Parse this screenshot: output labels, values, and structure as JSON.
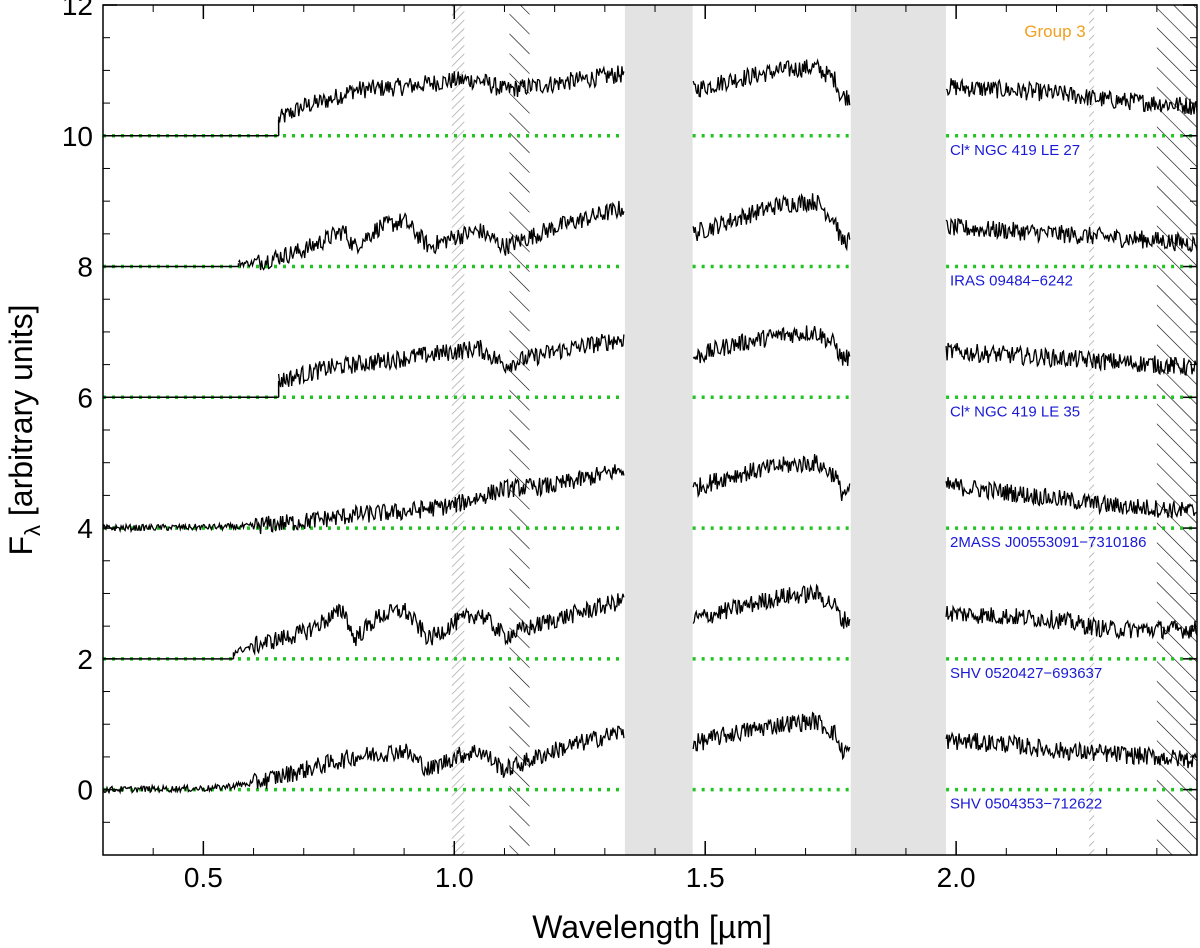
{
  "chart_data": {
    "type": "line",
    "title": "",
    "annotation": "Group 3",
    "xlabel": "Wavelength [µm]",
    "ylabel_main": "F",
    "ylabel_sub": "λ",
    "ylabel_rest": " [arbitrary units]",
    "xlim": [
      0.3,
      2.48
    ],
    "ylim": [
      -1,
      12
    ],
    "xticks": [
      {
        "v": 0.5,
        "label": "0.5"
      },
      {
        "v": 1.0,
        "label": "1.0"
      },
      {
        "v": 1.5,
        "label": "1.5"
      },
      {
        "v": 2.0,
        "label": "2.0"
      }
    ],
    "yticks": [
      {
        "v": 0,
        "label": "0"
      },
      {
        "v": 2,
        "label": "2"
      },
      {
        "v": 4,
        "label": "4"
      },
      {
        "v": 6,
        "label": "6"
      },
      {
        "v": 8,
        "label": "8"
      },
      {
        "v": 10,
        "label": "10"
      },
      {
        "v": 12,
        "label": "12"
      }
    ],
    "grid": false,
    "gaps_shaded": [
      [
        1.34,
        1.475
      ],
      [
        1.79,
        1.98
      ]
    ],
    "bands_hatched_gray": [
      [
        0.995,
        1.02
      ],
      [
        2.265,
        2.275
      ]
    ],
    "bands_hatched_black": [
      [
        1.11,
        1.15
      ],
      [
        2.4,
        2.48
      ]
    ],
    "colors": {
      "spectrum": "#000000",
      "baseline": "#22c422",
      "label": "#1a1ad6",
      "group": "#f0a020",
      "gap": "#e3e3e3",
      "hatch_gray": "#aaaaaa"
    },
    "series": [
      {
        "name": "Cl* NGC 419 LE 27",
        "offset": 10,
        "cutoff": 0.65,
        "points": [
          [
            0.65,
            0.25
          ],
          [
            0.7,
            0.45
          ],
          [
            0.75,
            0.55
          ],
          [
            0.8,
            0.7
          ],
          [
            0.9,
            0.75
          ],
          [
            1.0,
            0.85
          ],
          [
            1.05,
            0.85
          ],
          [
            1.1,
            0.7
          ],
          [
            1.2,
            0.8
          ],
          [
            1.34,
            0.95
          ],
          [
            1.475,
            0.7
          ],
          [
            1.55,
            0.85
          ],
          [
            1.65,
            1.0
          ],
          [
            1.72,
            1.05
          ],
          [
            1.76,
            0.85
          ],
          [
            1.77,
            0.6
          ],
          [
            1.79,
            0.6
          ],
          [
            1.98,
            0.75
          ],
          [
            2.1,
            0.7
          ],
          [
            2.2,
            0.65
          ],
          [
            2.3,
            0.55
          ],
          [
            2.4,
            0.5
          ],
          [
            2.48,
            0.45
          ]
        ]
      },
      {
        "name": "IRAS 09484−6242",
        "offset": 8,
        "cutoff": 0.57,
        "points": [
          [
            0.57,
            0.05
          ],
          [
            0.6,
            0.05
          ],
          [
            0.7,
            0.25
          ],
          [
            0.78,
            0.55
          ],
          [
            0.8,
            0.3
          ],
          [
            0.85,
            0.6
          ],
          [
            0.9,
            0.7
          ],
          [
            0.95,
            0.3
          ],
          [
            1.0,
            0.45
          ],
          [
            1.05,
            0.55
          ],
          [
            1.1,
            0.3
          ],
          [
            1.2,
            0.6
          ],
          [
            1.34,
            0.9
          ],
          [
            1.475,
            0.5
          ],
          [
            1.55,
            0.7
          ],
          [
            1.65,
            0.95
          ],
          [
            1.72,
            1.0
          ],
          [
            1.76,
            0.7
          ],
          [
            1.77,
            0.4
          ],
          [
            1.79,
            0.4
          ],
          [
            1.98,
            0.6
          ],
          [
            2.1,
            0.55
          ],
          [
            2.2,
            0.5
          ],
          [
            2.3,
            0.45
          ],
          [
            2.4,
            0.4
          ],
          [
            2.48,
            0.35
          ]
        ]
      },
      {
        "name": "Cl* NGC 419 LE 35",
        "offset": 6,
        "cutoff": 0.65,
        "points": [
          [
            0.65,
            0.25
          ],
          [
            0.7,
            0.35
          ],
          [
            0.75,
            0.45
          ],
          [
            0.8,
            0.5
          ],
          [
            0.9,
            0.6
          ],
          [
            1.0,
            0.7
          ],
          [
            1.05,
            0.75
          ],
          [
            1.1,
            0.5
          ],
          [
            1.2,
            0.7
          ],
          [
            1.34,
            0.9
          ],
          [
            1.475,
            0.6
          ],
          [
            1.55,
            0.8
          ],
          [
            1.65,
            0.95
          ],
          [
            1.72,
            1.0
          ],
          [
            1.76,
            0.8
          ],
          [
            1.77,
            0.6
          ],
          [
            1.79,
            0.6
          ],
          [
            1.98,
            0.7
          ],
          [
            2.1,
            0.65
          ],
          [
            2.2,
            0.6
          ],
          [
            2.3,
            0.55
          ],
          [
            2.4,
            0.5
          ],
          [
            2.48,
            0.45
          ]
        ]
      },
      {
        "name": "2MASS J00553091−7310186",
        "offset": 4,
        "cutoff": 0.3,
        "points": [
          [
            0.3,
            0.0
          ],
          [
            0.58,
            0.02
          ],
          [
            0.7,
            0.1
          ],
          [
            0.8,
            0.2
          ],
          [
            0.9,
            0.25
          ],
          [
            1.0,
            0.35
          ],
          [
            1.1,
            0.6
          ],
          [
            1.2,
            0.65
          ],
          [
            1.34,
            0.9
          ],
          [
            1.475,
            0.6
          ],
          [
            1.55,
            0.8
          ],
          [
            1.65,
            0.95
          ],
          [
            1.72,
            1.0
          ],
          [
            1.76,
            0.8
          ],
          [
            1.77,
            0.55
          ],
          [
            1.79,
            0.55
          ],
          [
            1.98,
            0.65
          ],
          [
            2.1,
            0.55
          ],
          [
            2.2,
            0.45
          ],
          [
            2.3,
            0.35
          ],
          [
            2.4,
            0.3
          ],
          [
            2.48,
            0.25
          ]
        ]
      },
      {
        "name": "SHV 0520427−693637",
        "offset": 2,
        "cutoff": 0.56,
        "points": [
          [
            0.56,
            0.1
          ],
          [
            0.6,
            0.2
          ],
          [
            0.7,
            0.4
          ],
          [
            0.78,
            0.75
          ],
          [
            0.8,
            0.3
          ],
          [
            0.85,
            0.65
          ],
          [
            0.9,
            0.75
          ],
          [
            0.95,
            0.3
          ],
          [
            1.0,
            0.55
          ],
          [
            1.05,
            0.7
          ],
          [
            1.1,
            0.35
          ],
          [
            1.2,
            0.6
          ],
          [
            1.34,
            0.9
          ],
          [
            1.475,
            0.6
          ],
          [
            1.55,
            0.75
          ],
          [
            1.65,
            0.95
          ],
          [
            1.72,
            1.0
          ],
          [
            1.76,
            0.8
          ],
          [
            1.77,
            0.6
          ],
          [
            1.79,
            0.6
          ],
          [
            1.98,
            0.7
          ],
          [
            2.1,
            0.65
          ],
          [
            2.2,
            0.6
          ],
          [
            2.3,
            0.45
          ],
          [
            2.4,
            0.45
          ],
          [
            2.48,
            0.45
          ]
        ]
      },
      {
        "name": "SHV 0504353−712622",
        "offset": 0,
        "cutoff": 0.3,
        "points": [
          [
            0.3,
            0.0
          ],
          [
            0.52,
            0.02
          ],
          [
            0.6,
            0.1
          ],
          [
            0.7,
            0.3
          ],
          [
            0.8,
            0.5
          ],
          [
            0.9,
            0.6
          ],
          [
            0.95,
            0.3
          ],
          [
            1.0,
            0.5
          ],
          [
            1.05,
            0.6
          ],
          [
            1.1,
            0.3
          ],
          [
            1.2,
            0.6
          ],
          [
            1.34,
            0.9
          ],
          [
            1.475,
            0.7
          ],
          [
            1.55,
            0.85
          ],
          [
            1.65,
            1.0
          ],
          [
            1.72,
            1.05
          ],
          [
            1.76,
            0.85
          ],
          [
            1.77,
            0.6
          ],
          [
            1.79,
            0.6
          ],
          [
            1.98,
            0.75
          ],
          [
            2.1,
            0.7
          ],
          [
            2.2,
            0.6
          ],
          [
            2.3,
            0.55
          ],
          [
            2.4,
            0.5
          ],
          [
            2.48,
            0.45
          ]
        ]
      }
    ]
  }
}
